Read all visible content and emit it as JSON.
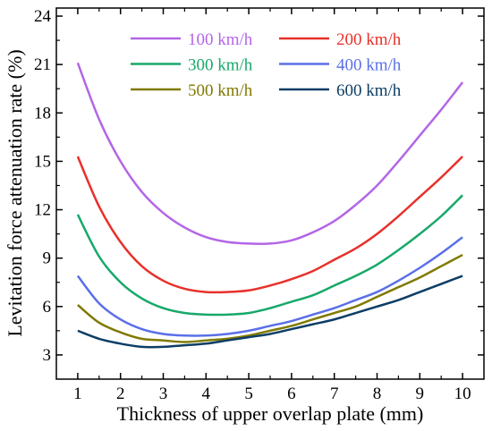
{
  "chart_data": {
    "type": "line",
    "xlabel": "Thickness of upper overlap plate (mm)",
    "ylabel": "Levitation force attenuation rate (%)",
    "xlim": [
      0.5,
      10.5
    ],
    "ylim": [
      1.5,
      24.5
    ],
    "xticks": [
      "1",
      "2",
      "3",
      "4",
      "5",
      "6",
      "7",
      "8",
      "9",
      "10"
    ],
    "yticks": [
      "3",
      "6",
      "9",
      "12",
      "15",
      "18",
      "21",
      "24"
    ],
    "grid": false,
    "legend_placement": "top-center",
    "x": [
      1,
      1.5,
      2,
      2.5,
      3,
      3.5,
      4,
      4.5,
      5,
      5.5,
      6,
      6.5,
      7,
      7.5,
      8,
      8.5,
      9,
      9.5,
      10
    ],
    "series": [
      {
        "name": "100 km/h",
        "color": "#B366E6",
        "values": [
          21.1,
          17.6,
          15.0,
          13.1,
          11.8,
          10.9,
          10.3,
          10.0,
          9.9,
          9.9,
          10.1,
          10.6,
          11.3,
          12.3,
          13.5,
          15.0,
          16.6,
          18.2,
          19.9
        ]
      },
      {
        "name": "200 km/h",
        "color": "#E8302A",
        "values": [
          15.3,
          12.2,
          10.0,
          8.5,
          7.6,
          7.1,
          6.9,
          6.9,
          7.0,
          7.3,
          7.7,
          8.2,
          8.9,
          9.6,
          10.5,
          11.6,
          12.8,
          14.0,
          15.3
        ]
      },
      {
        "name": "300 km/h",
        "color": "#17A86A",
        "values": [
          11.7,
          9.1,
          7.5,
          6.5,
          5.9,
          5.6,
          5.5,
          5.5,
          5.6,
          5.9,
          6.3,
          6.7,
          7.3,
          7.9,
          8.6,
          9.5,
          10.5,
          11.6,
          12.9
        ]
      },
      {
        "name": "400 km/h",
        "color": "#5A6FE8",
        "values": [
          7.9,
          6.2,
          5.2,
          4.6,
          4.3,
          4.2,
          4.2,
          4.3,
          4.5,
          4.8,
          5.1,
          5.5,
          5.9,
          6.4,
          6.9,
          7.6,
          8.4,
          9.3,
          10.3
        ]
      },
      {
        "name": "500 km/h",
        "color": "#807A00",
        "values": [
          6.1,
          5.0,
          4.4,
          4.0,
          3.9,
          3.8,
          3.9,
          4.0,
          4.2,
          4.5,
          4.8,
          5.2,
          5.6,
          6.0,
          6.6,
          7.2,
          7.8,
          8.5,
          9.2
        ]
      },
      {
        "name": "600 km/h",
        "color": "#0C3D66",
        "values": [
          4.5,
          4.0,
          3.7,
          3.5,
          3.5,
          3.6,
          3.7,
          3.9,
          4.1,
          4.3,
          4.6,
          4.9,
          5.2,
          5.6,
          6.0,
          6.4,
          6.9,
          7.4,
          7.9
        ]
      }
    ]
  }
}
